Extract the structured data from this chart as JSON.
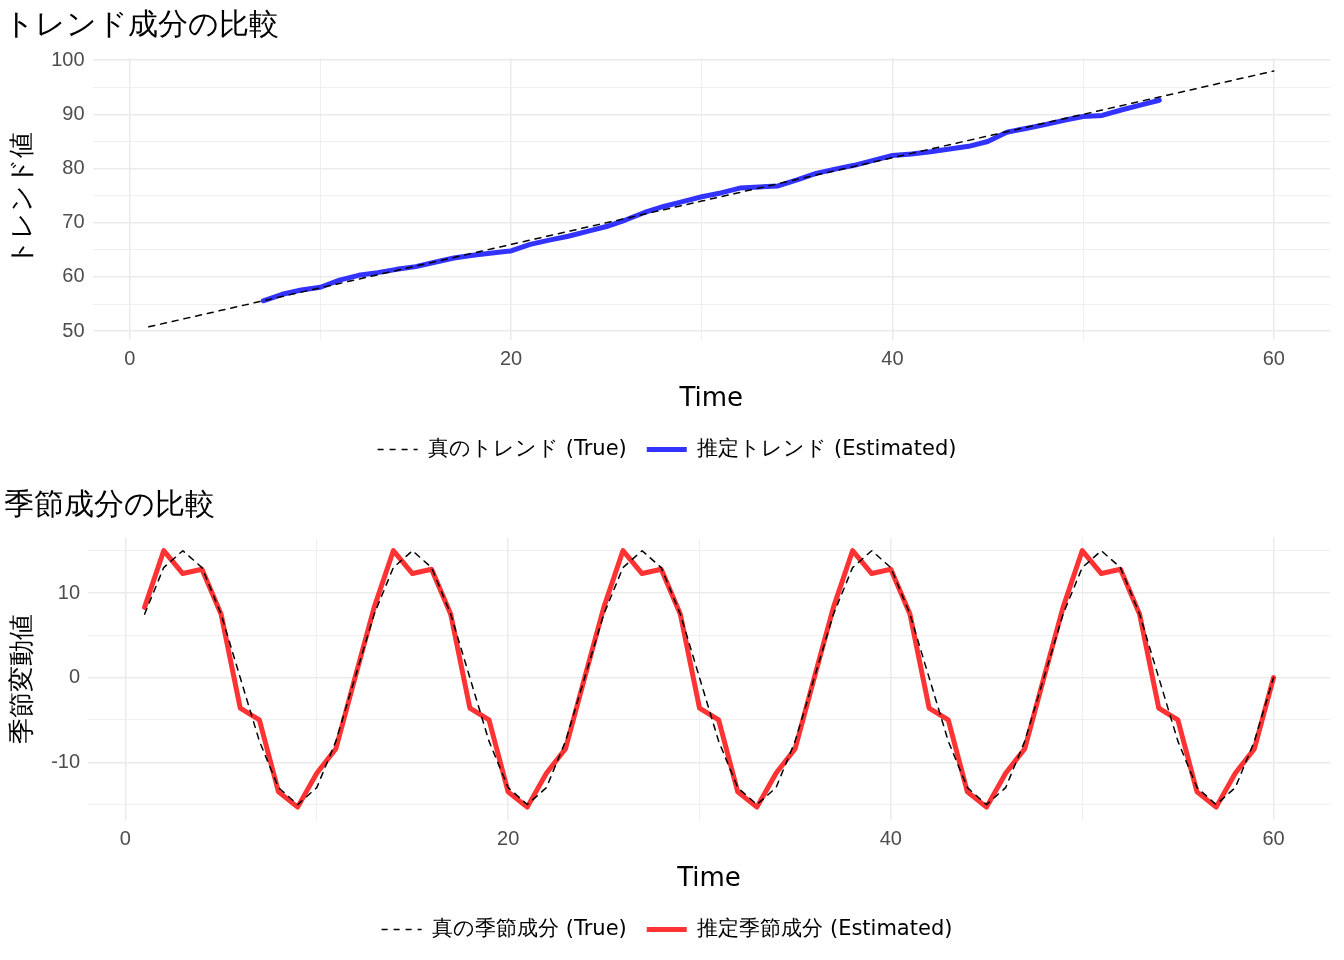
{
  "chart_data": [
    {
      "type": "line",
      "title": "トレンド成分の比較",
      "xlabel": "Time",
      "ylabel": "トレンド値",
      "legend": "bottom",
      "grid": true,
      "xlim": [
        -1.95,
        62.95
      ],
      "xticks": [
        0,
        {
          "value": 10,
          "label": null
        },
        20,
        {
          "value": 30,
          "label": null
        },
        40,
        {
          "value": 50,
          "label": null
        },
        60
      ],
      "ylim": [
        48.4,
        100.4
      ],
      "yticks": [
        50,
        {
          "value": 55,
          "label": null
        },
        60,
        {
          "value": 65,
          "label": null
        },
        70,
        {
          "value": 75,
          "label": null
        },
        80,
        {
          "value": 85,
          "label": null
        },
        90,
        {
          "value": 95,
          "label": null
        },
        100
      ],
      "series": [
        {
          "name": "真のトレンド (True)",
          "color": "#000000",
          "line_style": "dashed",
          "x": [
            1,
            2,
            3,
            4,
            5,
            6,
            7,
            8,
            9,
            10,
            11,
            12,
            13,
            14,
            15,
            16,
            17,
            18,
            19,
            20,
            21,
            22,
            23,
            24,
            25,
            26,
            27,
            28,
            29,
            30,
            31,
            32,
            33,
            34,
            35,
            36,
            37,
            38,
            39,
            40,
            41,
            42,
            43,
            44,
            45,
            46,
            47,
            48,
            49,
            50,
            51,
            52,
            53,
            54,
            55,
            56,
            57,
            58,
            59,
            60
          ],
          "values": [
            50.8,
            51.6,
            52.4,
            53.2,
            54.0,
            54.8,
            55.6,
            56.4,
            57.2,
            58.0,
            58.8,
            59.6,
            60.4,
            61.2,
            62.0,
            62.8,
            63.6,
            64.4,
            65.2,
            66.0,
            66.8,
            67.6,
            68.4,
            69.2,
            70.0,
            70.8,
            71.6,
            72.4,
            73.2,
            74.0,
            74.8,
            75.6,
            76.4,
            77.2,
            78.0,
            78.8,
            79.6,
            80.4,
            81.2,
            82.0,
            82.8,
            83.6,
            84.4,
            85.2,
            86.0,
            86.8,
            87.6,
            88.4,
            89.2,
            90.0,
            90.8,
            91.6,
            92.4,
            93.2,
            94.0,
            94.8,
            95.6,
            96.4,
            97.2,
            98.0
          ]
        },
        {
          "name": "推定トレンド (Estimated)",
          "color": "#3333ff",
          "line_style": "solid",
          "x": [
            7,
            8,
            9,
            10,
            11,
            12,
            13,
            14,
            15,
            16,
            17,
            18,
            19,
            20,
            21,
            22,
            23,
            24,
            25,
            26,
            27,
            28,
            29,
            30,
            31,
            32,
            33,
            34,
            35,
            36,
            37,
            38,
            39,
            40,
            41,
            42,
            43,
            44,
            45,
            46,
            47,
            48,
            49,
            50,
            51,
            52,
            53,
            54
          ],
          "values": [
            55.6,
            56.8,
            57.6,
            58.1,
            59.4,
            60.3,
            60.8,
            61.4,
            61.9,
            62.7,
            63.5,
            64.0,
            64.4,
            64.8,
            66.0,
            66.8,
            67.5,
            68.4,
            69.3,
            70.5,
            71.9,
            73.0,
            73.9,
            74.8,
            75.5,
            76.4,
            76.6,
            76.8,
            77.9,
            79.1,
            79.9,
            80.6,
            81.5,
            82.4,
            82.7,
            83.1,
            83.6,
            84.1,
            85.0,
            86.7,
            87.4,
            88.1,
            88.9,
            89.6,
            89.8,
            90.8,
            91.7,
            92.6
          ]
        }
      ]
    },
    {
      "type": "line",
      "title": "季節成分の比較",
      "xlabel": "Time",
      "ylabel": "季節変動値",
      "legend": "bottom",
      "grid": true,
      "xlim": [
        -1.95,
        62.95
      ],
      "xticks": [
        0,
        {
          "value": 10,
          "label": null
        },
        20,
        {
          "value": 30,
          "label": null
        },
        40,
        {
          "value": 50,
          "label": null
        },
        60
      ],
      "ylim": [
        -16.8,
        16.5
      ],
      "yticks": [
        {
          "value": -15,
          "label": null
        },
        -10,
        {
          "value": -5,
          "label": null
        },
        0,
        {
          "value": 5,
          "label": null
        },
        10,
        {
          "value": 15,
          "label": null
        }
      ],
      "series": [
        {
          "name": "真の季節成分 (True)",
          "color": "#000000",
          "line_style": "dashed",
          "x": [
            1,
            2,
            3,
            4,
            5,
            6,
            7,
            8,
            9,
            10,
            11,
            12,
            13,
            14,
            15,
            16,
            17,
            18,
            19,
            20,
            21,
            22,
            23,
            24,
            25,
            26,
            27,
            28,
            29,
            30,
            31,
            32,
            33,
            34,
            35,
            36,
            37,
            38,
            39,
            40,
            41,
            42,
            43,
            44,
            45,
            46,
            47,
            48,
            49,
            50,
            51,
            52,
            53,
            54,
            55,
            56,
            57,
            58,
            59,
            60
          ],
          "values": [
            7.5,
            13.0,
            15.0,
            13.0,
            7.5,
            0.0,
            -7.5,
            -13.0,
            -15.0,
            -13.0,
            -7.5,
            0.0,
            7.5,
            13.0,
            15.0,
            13.0,
            7.5,
            0.0,
            -7.5,
            -13.0,
            -15.0,
            -13.0,
            -7.5,
            0.0,
            7.5,
            13.0,
            15.0,
            13.0,
            7.5,
            0.0,
            -7.5,
            -13.0,
            -15.0,
            -13.0,
            -7.5,
            0.0,
            7.5,
            13.0,
            15.0,
            13.0,
            7.5,
            0.0,
            -7.5,
            -13.0,
            -15.0,
            -13.0,
            -7.5,
            0.0,
            7.5,
            13.0,
            15.0,
            13.0,
            7.5,
            0.0,
            -7.5,
            -13.0,
            -15.0,
            -13.0,
            -7.5,
            0.0
          ]
        },
        {
          "name": "推定季節成分 (Estimated)",
          "color": "#ff3333",
          "line_style": "solid",
          "x": [
            1,
            2,
            3,
            4,
            5,
            6,
            7,
            8,
            9,
            10,
            11,
            12,
            13,
            14,
            15,
            16,
            17,
            18,
            19,
            20,
            21,
            22,
            23,
            24,
            25,
            26,
            27,
            28,
            29,
            30,
            31,
            32,
            33,
            34,
            35,
            36,
            37,
            38,
            39,
            40,
            41,
            42,
            43,
            44,
            45,
            46,
            47,
            48,
            49,
            50,
            51,
            52,
            53,
            54,
            55,
            56,
            57,
            58,
            59,
            60
          ],
          "values": [
            8.3,
            15.0,
            12.3,
            12.8,
            7.5,
            -3.6,
            -5.0,
            -13.5,
            -15.3,
            -11.3,
            -8.4,
            0.0,
            8.3,
            15.0,
            12.3,
            12.8,
            7.5,
            -3.6,
            -5.0,
            -13.5,
            -15.3,
            -11.3,
            -8.4,
            0.0,
            8.3,
            15.0,
            12.3,
            12.8,
            7.5,
            -3.6,
            -5.0,
            -13.5,
            -15.3,
            -11.3,
            -8.4,
            0.0,
            8.3,
            15.0,
            12.3,
            12.8,
            7.5,
            -3.6,
            -5.0,
            -13.5,
            -15.3,
            -11.3,
            -8.4,
            0.0,
            8.3,
            15.0,
            12.3,
            12.8,
            7.5,
            -3.6,
            -5.0,
            -13.5,
            -15.3,
            -11.3,
            -8.4,
            0.0
          ]
        }
      ]
    }
  ]
}
